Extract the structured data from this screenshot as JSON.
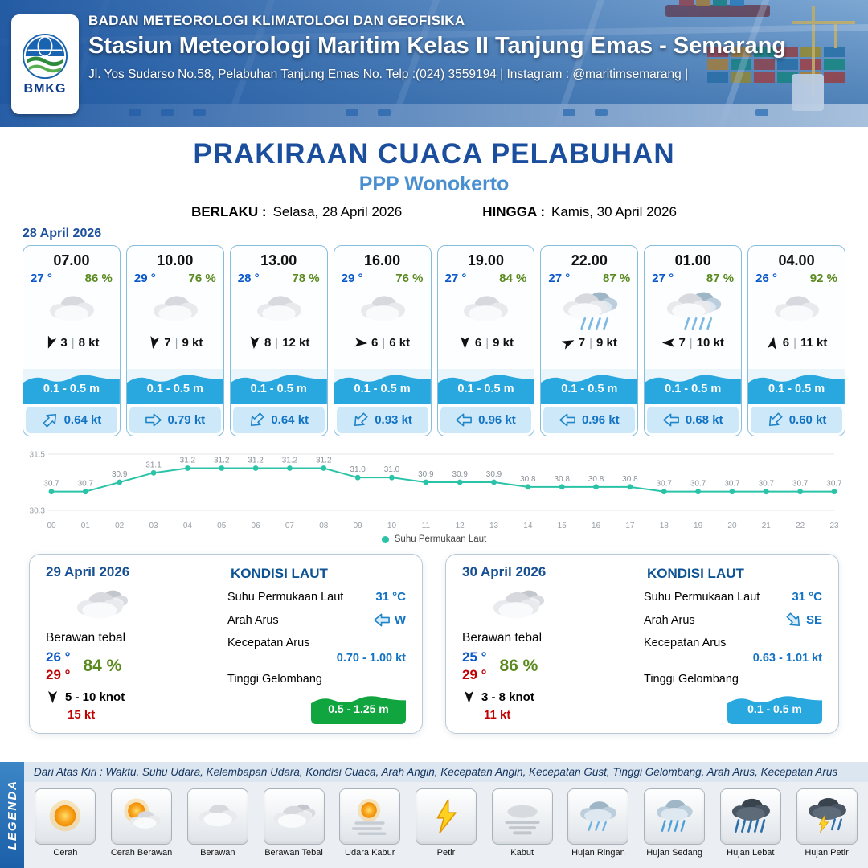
{
  "header": {
    "logo_text": "BMKG",
    "org_line": "BADAN METEOROLOGI KLIMATOLOGI DAN GEOFISIKA",
    "station_line": "Stasiun Meteorologi Maritim Kelas II Tanjung Emas - Semarang",
    "address_line": "Jl. Yos Sudarso No.58, Pelabuhan Tanjung Emas No. Telp :(024) 3559194 | Instagram : @maritimsemarang |"
  },
  "title": {
    "main": "PRAKIRAAN CUACA PELABUHAN",
    "location": "PPP Wonokerto",
    "valid_from_label": "BERLAKU :",
    "valid_from": "Selasa, 28 April 2026",
    "valid_to_label": "HINGGA :",
    "valid_to": "Kamis, 30 April 2026"
  },
  "ui": {
    "separator": "|"
  },
  "colors": {
    "accent_navy": "#1b4f9e",
    "location_blue": "#4a90d0",
    "temp_blue": "#0a58ca",
    "humidity_green": "#5a8a1e",
    "gust_red": "#c00000",
    "wave_blue": "#29a8e0",
    "wave_green": "#10a53f",
    "current_blue": "#1273c4"
  },
  "forecast": {
    "date": "28 April 2026",
    "cards": [
      {
        "time": "07.00",
        "temp": "27 °",
        "humidity": "86 %",
        "icon": "berawan",
        "wind_deg": 200,
        "wind_speed": "3",
        "gust": "8 kt",
        "wave": "0.1 - 0.5 m",
        "current_deg": -45,
        "current": "0.64 kt"
      },
      {
        "time": "10.00",
        "temp": "29 °",
        "humidity": "76 %",
        "icon": "berawan",
        "wind_deg": 190,
        "wind_speed": "7",
        "gust": "9 kt",
        "wave": "0.1 - 0.5 m",
        "current_deg": 0,
        "current": "0.79 kt"
      },
      {
        "time": "13.00",
        "temp": "28 °",
        "humidity": "78 %",
        "icon": "berawan",
        "wind_deg": 185,
        "wind_speed": "8",
        "gust": "12 kt",
        "wave": "0.1 - 0.5 m",
        "current_deg": 135,
        "current": "0.64 kt"
      },
      {
        "time": "16.00",
        "temp": "29 °",
        "humidity": "76 %",
        "icon": "berawan",
        "wind_deg": 95,
        "wind_speed": "6",
        "gust": "6 kt",
        "wave": "0.1 - 0.5 m",
        "current_deg": 135,
        "current": "0.93 kt"
      },
      {
        "time": "19.00",
        "temp": "27 °",
        "humidity": "84 %",
        "icon": "berawan",
        "wind_deg": 180,
        "wind_speed": "6",
        "gust": "9 kt",
        "wave": "0.1 - 0.5 m",
        "current_deg": 180,
        "current": "0.96 kt"
      },
      {
        "time": "22.00",
        "temp": "27 °",
        "humidity": "87 %",
        "icon": "hujan",
        "wind_deg": 65,
        "wind_speed": "7",
        "gust": "9 kt",
        "wave": "0.1 - 0.5 m",
        "current_deg": 180,
        "current": "0.96 kt"
      },
      {
        "time": "01.00",
        "temp": "27 °",
        "humidity": "87 %",
        "icon": "hujan",
        "wind_deg": 270,
        "wind_speed": "7",
        "gust": "10 kt",
        "wave": "0.1 - 0.5 m",
        "current_deg": 180,
        "current": "0.68 kt"
      },
      {
        "time": "04.00",
        "temp": "26 °",
        "humidity": "92 %",
        "icon": "berawan",
        "wind_deg": 10,
        "wind_speed": "6",
        "gust": "11 kt",
        "wave": "0.1 - 0.5 m",
        "current_deg": 135,
        "current": "0.60 kt"
      }
    ]
  },
  "chart_data": {
    "type": "line",
    "series_name": "Suhu Permukaan Laut",
    "x": [
      "00",
      "01",
      "02",
      "03",
      "04",
      "05",
      "06",
      "07",
      "08",
      "09",
      "10",
      "11",
      "12",
      "13",
      "14",
      "15",
      "16",
      "17",
      "18",
      "19",
      "20",
      "21",
      "22",
      "23"
    ],
    "values": [
      30.7,
      30.7,
      30.9,
      31.1,
      31.2,
      31.2,
      31.2,
      31.2,
      31.2,
      31.0,
      31.0,
      30.9,
      30.9,
      30.9,
      30.8,
      30.8,
      30.8,
      30.8,
      30.7,
      30.7,
      30.7,
      30.7,
      30.7,
      30.7
    ],
    "ylim": [
      30.3,
      31.5
    ],
    "xlabel": "",
    "ylabel": "",
    "grid": true,
    "legend_position": "bottom",
    "line_color": "#2bc3a8"
  },
  "daily": [
    {
      "date": "29 April 2026",
      "icon": "berawan-tebal",
      "condition": "Berawan tebal",
      "temp_min": "26 °",
      "temp_max": "29 °",
      "humidity": "84 %",
      "wind_arrow_deg": 180,
      "wind_range": "5  - 10 knot",
      "gust": "15 kt",
      "sea_title": "KONDISI LAUT",
      "sst_label": "Suhu Permukaan Laut",
      "sst": "31 °C",
      "current_dir_label": "Arah Arus",
      "current_dir": "W",
      "current_deg": 180,
      "current_speed_label": "Kecepatan Arus",
      "current_speed": "0.70 - 1.00 kt",
      "wave_label": "Tinggi Gelombang",
      "wave": "0.5 - 1.25 m",
      "wave_color": "#10a53f"
    },
    {
      "date": "30 April 2026",
      "icon": "berawan-tebal",
      "condition": "Berawan tebal",
      "temp_min": "25 °",
      "temp_max": "29 °",
      "humidity": "86 %",
      "wind_arrow_deg": 180,
      "wind_range": "3  - 8 knot",
      "gust": "11 kt",
      "sea_title": "KONDISI LAUT",
      "sst_label": "Suhu Permukaan Laut",
      "sst": "31 °C",
      "current_dir_label": "Arah Arus",
      "current_dir": "SE",
      "current_deg": 45,
      "current_speed_label": "Kecepatan Arus",
      "current_speed": "0.63 - 1.01 kt",
      "wave_label": "Tinggi Gelombang",
      "wave": "0.1 - 0.5 m",
      "wave_color": "#29a8e0"
    }
  ],
  "legend": {
    "title": "LEGENDA",
    "description": "Dari Atas Kiri : Waktu, Suhu Udara, Kelembapan Udara, Kondisi Cuaca, Arah Angin, Kecepatan Angin, Kecepatan Gust, Tinggi Gelombang, Arah Arus, Kecepatan Arus",
    "items": [
      {
        "label": "Cerah",
        "icon": "cerah"
      },
      {
        "label": "Cerah Berawan",
        "icon": "cerah-berawan"
      },
      {
        "label": "Berawan",
        "icon": "berawan"
      },
      {
        "label": "Berawan Tebal",
        "icon": "berawan-tebal"
      },
      {
        "label": "Udara Kabur",
        "icon": "udara-kabur"
      },
      {
        "label": "Petir",
        "icon": "petir"
      },
      {
        "label": "Kabut",
        "icon": "kabut"
      },
      {
        "label": "Hujan Ringan",
        "icon": "hujan-ringan"
      },
      {
        "label": "Hujan Sedang",
        "icon": "hujan-sedang"
      },
      {
        "label": "Hujan Lebat",
        "icon": "hujan-lebat"
      },
      {
        "label": "Hujan Petir",
        "icon": "hujan-petir"
      }
    ]
  }
}
